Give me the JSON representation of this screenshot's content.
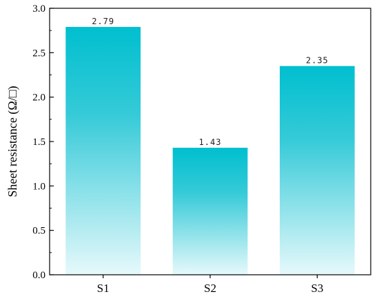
{
  "chart_data": {
    "type": "bar",
    "categories": [
      "S1",
      "S2",
      "S3"
    ],
    "values": [
      2.79,
      1.43,
      2.35
    ],
    "data_labels": [
      "2.79",
      "1.43",
      "2.35"
    ],
    "title": "",
    "xlabel": "",
    "ylabel": "Sheet resistance (Ω/□)",
    "ylim": [
      0,
      3.0
    ],
    "yticks": [
      0.0,
      0.5,
      1.0,
      1.5,
      2.0,
      2.5,
      3.0
    ],
    "ytick_labels": [
      "0.0",
      "0.5",
      "1.0",
      "1.5",
      "2.0",
      "2.5",
      "3.0"
    ],
    "grid": false,
    "legend": "none",
    "colors": {
      "bar_top": "#00BFCF",
      "bar_bottom": "#E6F9FB",
      "axis": "#000000"
    }
  }
}
